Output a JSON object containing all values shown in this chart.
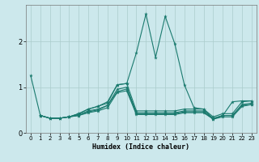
{
  "xlabel": "Humidex (Indice chaleur)",
  "background_color": "#cce8ec",
  "line_color": "#1a7a6e",
  "grid_color": "#aacccc",
  "xlim": [
    -0.5,
    23.5
  ],
  "ylim": [
    0,
    2.8
  ],
  "yticks": [
    0,
    1,
    2
  ],
  "xticks": [
    0,
    1,
    2,
    3,
    4,
    5,
    6,
    7,
    8,
    9,
    10,
    11,
    12,
    13,
    14,
    15,
    16,
    17,
    18,
    19,
    20,
    21,
    22,
    23
  ],
  "lines": [
    {
      "x": [
        0,
        1,
        2,
        3,
        4,
        5,
        6,
        7,
        8,
        9,
        10,
        11,
        12,
        13,
        14,
        15,
        16,
        17,
        18,
        19,
        20,
        21,
        22,
        23
      ],
      "y": [
        1.25,
        0.38,
        0.32,
        0.32,
        0.35,
        0.42,
        0.52,
        0.58,
        0.68,
        1.05,
        1.08,
        1.75,
        2.6,
        1.65,
        2.55,
        1.95,
        1.05,
        0.55,
        0.52,
        0.3,
        0.38,
        0.68,
        0.7,
        0.7
      ]
    },
    {
      "x": [
        1,
        2,
        3,
        4,
        5,
        6,
        7,
        8,
        9,
        10,
        11,
        12,
        13,
        14,
        15,
        16,
        17,
        18,
        19,
        20,
        21,
        22,
        23
      ],
      "y": [
        0.38,
        0.32,
        0.32,
        0.35,
        0.42,
        0.52,
        0.58,
        0.65,
        1.05,
        1.08,
        0.48,
        0.48,
        0.48,
        0.48,
        0.48,
        0.52,
        0.52,
        0.52,
        0.35,
        0.42,
        0.42,
        0.68,
        0.7
      ]
    },
    {
      "x": [
        1,
        2,
        3,
        4,
        5,
        6,
        7,
        8,
        9,
        10,
        11,
        12,
        13,
        14,
        15,
        16,
        17,
        18,
        19,
        20,
        21,
        22,
        23
      ],
      "y": [
        0.38,
        0.32,
        0.32,
        0.35,
        0.4,
        0.48,
        0.52,
        0.6,
        0.95,
        1.0,
        0.44,
        0.44,
        0.44,
        0.44,
        0.44,
        0.48,
        0.48,
        0.48,
        0.32,
        0.38,
        0.38,
        0.62,
        0.65
      ]
    },
    {
      "x": [
        1,
        2,
        3,
        4,
        5,
        6,
        7,
        8,
        9,
        10,
        11,
        12,
        13,
        14,
        15,
        16,
        17,
        18,
        19,
        20,
        21,
        22,
        23
      ],
      "y": [
        0.38,
        0.32,
        0.32,
        0.35,
        0.38,
        0.44,
        0.48,
        0.55,
        0.88,
        0.92,
        0.4,
        0.4,
        0.4,
        0.4,
        0.4,
        0.44,
        0.44,
        0.44,
        0.3,
        0.35,
        0.35,
        0.58,
        0.62
      ]
    },
    {
      "x": [
        4,
        5,
        6,
        7,
        8,
        9,
        10,
        11,
        12,
        13,
        14,
        15,
        16,
        17,
        18,
        19,
        20,
        21,
        22,
        23
      ],
      "y": [
        0.35,
        0.38,
        0.46,
        0.5,
        0.6,
        0.9,
        0.96,
        0.42,
        0.42,
        0.42,
        0.42,
        0.42,
        0.46,
        0.46,
        0.46,
        0.3,
        0.38,
        0.38,
        0.6,
        0.62
      ]
    }
  ]
}
